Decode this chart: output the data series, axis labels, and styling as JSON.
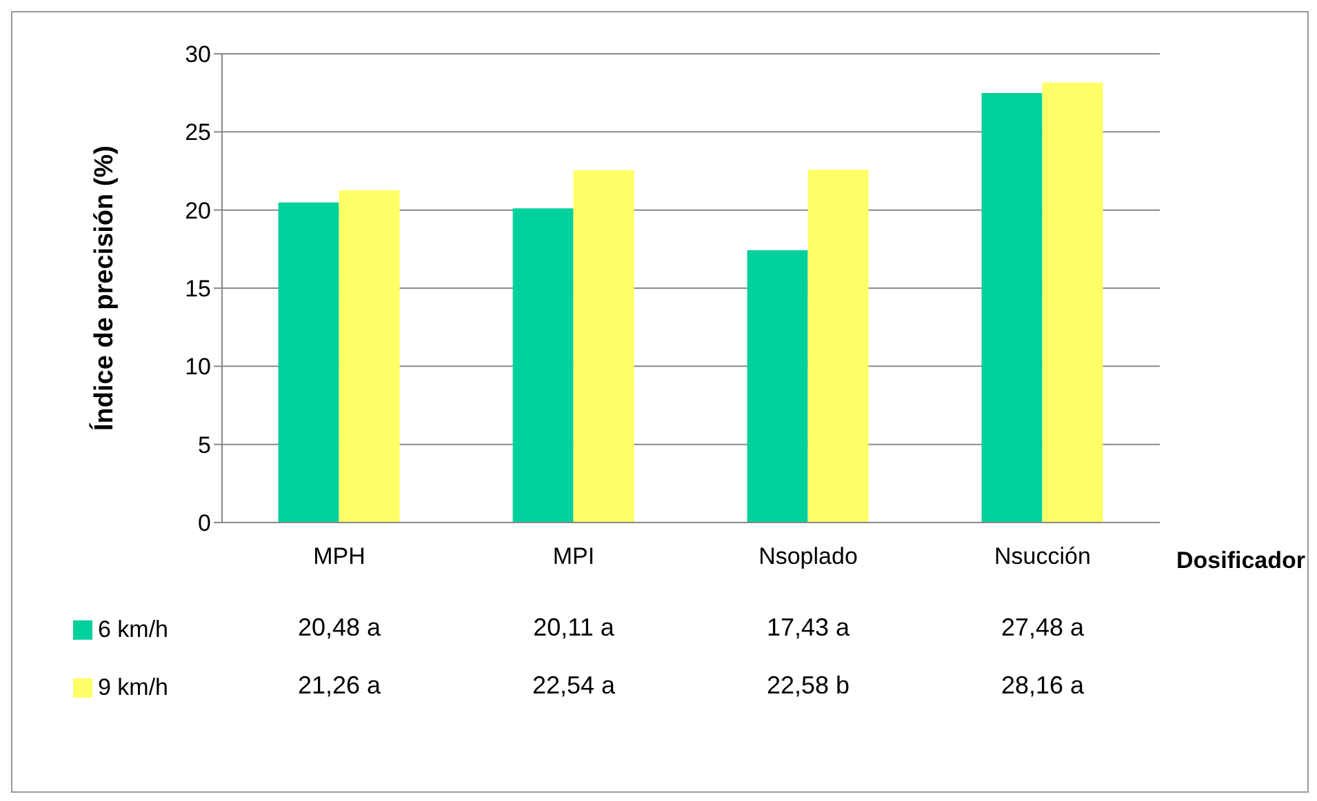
{
  "chart_data": {
    "type": "bar",
    "xlabel": "Dosificador",
    "ylabel": "Índice de precisión (%)",
    "categories": [
      "MPH",
      "MPI",
      "Nsoplado",
      "Nsucción"
    ],
    "series": [
      {
        "name": "6 km/h",
        "color": "#00d09b",
        "values": [
          20.48,
          20.11,
          17.43,
          27.48
        ],
        "value_labels": [
          "20,48 a",
          "20,11 a",
          "17,43 a",
          "27,48 a"
        ]
      },
      {
        "name": "9 km/h",
        "color": "#ffff66",
        "values": [
          21.26,
          22.54,
          22.58,
          28.16
        ],
        "value_labels": [
          "21,26 a",
          "22,54 a",
          "22,58 b",
          "28,16 a"
        ]
      }
    ],
    "ylim": [
      0,
      30
    ],
    "yticks": [
      0,
      5,
      10,
      15,
      20,
      25,
      30
    ],
    "grid": "y",
    "legend": "bottom"
  }
}
